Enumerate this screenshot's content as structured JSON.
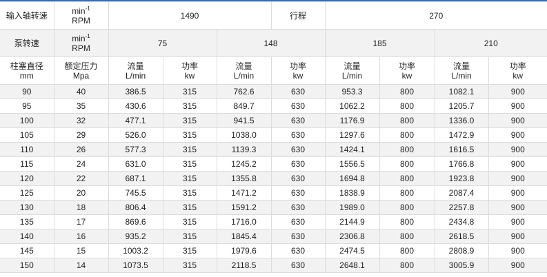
{
  "accent_color": "#3a6ea5",
  "header": {
    "input_speed_label": "输入轴转速",
    "unit_min": "min",
    "unit_sup": "-1",
    "unit_rpm": "RPM",
    "input_speed_value": "1490",
    "stroke_label": "行程",
    "stroke_value": "270",
    "pump_speed_label": "泵转速",
    "pump_speeds": [
      "75",
      "148",
      "185",
      "210"
    ],
    "plunger_label": "柱塞直径",
    "plunger_unit": "mm",
    "pressure_label": "额定压力",
    "pressure_unit": "Mpa",
    "flow_label": "流量",
    "flow_unit": "L/min",
    "power_label": "功率",
    "power_unit": "kw"
  },
  "rows": [
    [
      "90",
      "40",
      "386.5",
      "315",
      "762.6",
      "630",
      "953.3",
      "800",
      "1082.1",
      "900"
    ],
    [
      "95",
      "35",
      "430.6",
      "315",
      "849.7",
      "630",
      "1062.2",
      "800",
      "1205.7",
      "900"
    ],
    [
      "100",
      "32",
      "477.1",
      "315",
      "941.5",
      "630",
      "1176.9",
      "800",
      "1336.0",
      "900"
    ],
    [
      "105",
      "29",
      "526.0",
      "315",
      "1038.0",
      "630",
      "1297.6",
      "800",
      "1472.9",
      "900"
    ],
    [
      "110",
      "26",
      "577.3",
      "315",
      "1139.3",
      "630",
      "1424.1",
      "800",
      "1616.5",
      "900"
    ],
    [
      "115",
      "24",
      "631.0",
      "315",
      "1245.2",
      "630",
      "1556.5",
      "800",
      "1766.8",
      "900"
    ],
    [
      "120",
      "22",
      "687.1",
      "315",
      "1355.8",
      "630",
      "1694.8",
      "800",
      "1923.8",
      "900"
    ],
    [
      "125",
      "20",
      "745.5",
      "315",
      "1471.2",
      "630",
      "1838.9",
      "800",
      "2087.4",
      "900"
    ],
    [
      "130",
      "18",
      "806.4",
      "315",
      "1591.2",
      "630",
      "1989.0",
      "800",
      "2257.8",
      "900"
    ],
    [
      "135",
      "17",
      "869.6",
      "315",
      "1716.0",
      "630",
      "2144.9",
      "800",
      "2434.8",
      "900"
    ],
    [
      "140",
      "16",
      "935.2",
      "315",
      "1845.4",
      "630",
      "2306.8",
      "800",
      "2618.5",
      "900"
    ],
    [
      "145",
      "15",
      "1003.2",
      "315",
      "1979.6",
      "630",
      "2474.5",
      "800",
      "2808.9",
      "900"
    ],
    [
      "150",
      "14",
      "1073.5",
      "315",
      "2118.5",
      "630",
      "2648.1",
      "800",
      "3005.9",
      "900"
    ]
  ]
}
